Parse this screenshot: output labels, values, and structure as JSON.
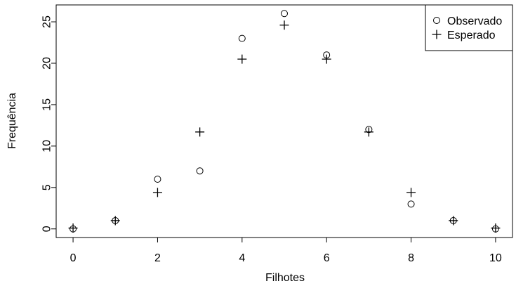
{
  "chart_data": {
    "type": "scatter",
    "title": "",
    "xlabel": "Filhotes",
    "ylabel": "Frequência",
    "xlim": [
      -0.4,
      10.4
    ],
    "ylim": [
      -1.04,
      27.04
    ],
    "xticks": [
      0,
      2,
      4,
      6,
      8,
      10
    ],
    "xtick_labels": [
      "0",
      "2",
      "4",
      "6",
      "8",
      "10"
    ],
    "yticks": [
      0,
      5,
      10,
      15,
      20,
      25
    ],
    "ytick_labels": [
      "0",
      "5",
      "10",
      "15",
      "20",
      "25"
    ],
    "legend_position": "top-right",
    "grid": false,
    "series": [
      {
        "name": "Observado",
        "marker": "circle",
        "x": [
          0,
          1,
          2,
          3,
          4,
          5,
          6,
          7,
          8,
          9,
          10
        ],
        "y": [
          0,
          1,
          6,
          7,
          23,
          26,
          21,
          12,
          3,
          1,
          0
        ]
      },
      {
        "name": "Esperado",
        "marker": "plus",
        "x": [
          0,
          1,
          2,
          3,
          4,
          5,
          6,
          7,
          8,
          9,
          10
        ],
        "y": [
          0.1,
          1.0,
          4.4,
          11.7,
          20.5,
          24.6,
          20.5,
          11.7,
          4.4,
          1.0,
          0.1
        ]
      }
    ]
  }
}
